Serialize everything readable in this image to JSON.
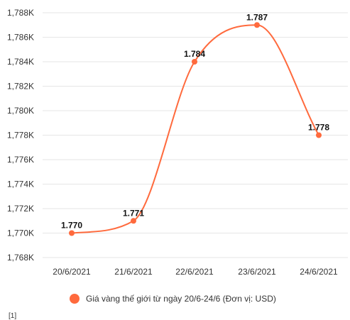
{
  "chart_data": {
    "type": "line",
    "categories": [
      "20/6/2021",
      "21/6/2021",
      "22/6/2021",
      "23/6/2021",
      "24/6/2021"
    ],
    "series": [
      {
        "name": "Giá vàng thế giới từ ngày 20/6-24/6 (Đơn vị: USD)",
        "values": [
          1770,
          1771,
          1784,
          1787,
          1778
        ],
        "labels": [
          "1.770",
          "1.771",
          "1.784",
          "1.787",
          "1.778"
        ],
        "color": "#ff6a3d"
      }
    ],
    "yticks": [
      "1,768K",
      "1,770K",
      "1,772K",
      "1,774K",
      "1,776K",
      "1,778K",
      "1,780K",
      "1,782K",
      "1,784K",
      "1,786K",
      "1,788K"
    ],
    "ylim": [
      1768,
      1788
    ],
    "grid": true,
    "legend_position": "bottom"
  },
  "footer": {
    "mark": "[1]"
  }
}
